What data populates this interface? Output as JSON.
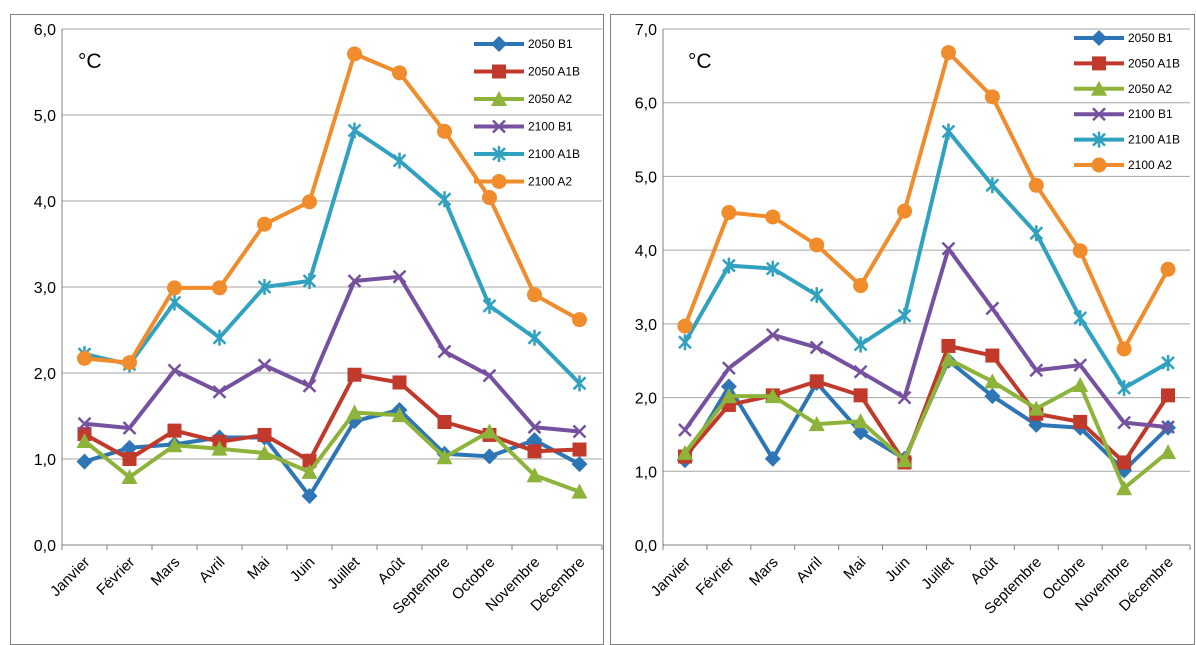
{
  "chart_data": [
    {
      "type": "line",
      "unit_label": "°C",
      "categories": [
        "Janvier",
        "Février",
        "Mars",
        "Avril",
        "Mai",
        "Juin",
        "Juillet",
        "Août",
        "Septembre",
        "Octobre",
        "Novembre",
        "Décembre"
      ],
      "ylim": [
        0,
        6
      ],
      "yticks": [
        "0,0",
        "1,0",
        "2,0",
        "3,0",
        "4,0",
        "5,0",
        "6,0"
      ],
      "legend_position": "top-right",
      "grid": true,
      "series": [
        {
          "name": "2050 B1",
          "color": "#2e75b6",
          "marker": "diamond",
          "values": [
            0.97,
            1.13,
            1.17,
            1.25,
            1.25,
            0.57,
            1.44,
            1.57,
            1.06,
            1.03,
            1.22,
            0.94
          ]
        },
        {
          "name": "2050 A1B",
          "color": "#c0392b",
          "marker": "square",
          "values": [
            1.29,
            1.0,
            1.33,
            1.2,
            1.28,
            0.98,
            1.98,
            1.89,
            1.43,
            1.28,
            1.09,
            1.11
          ]
        },
        {
          "name": "2050 A2",
          "color": "#8db33a",
          "marker": "triangle",
          "values": [
            1.21,
            0.79,
            1.16,
            1.12,
            1.07,
            0.85,
            1.54,
            1.51,
            1.02,
            1.32,
            0.81,
            0.62
          ]
        },
        {
          "name": "2100 B1",
          "color": "#7551a0",
          "marker": "x",
          "values": [
            1.41,
            1.36,
            2.03,
            1.78,
            2.09,
            1.85,
            3.07,
            3.12,
            2.25,
            1.97,
            1.37,
            1.32
          ]
        },
        {
          "name": "2100 A1B",
          "color": "#31a1c0",
          "marker": "star",
          "values": [
            2.22,
            2.1,
            2.82,
            2.41,
            3.0,
            3.07,
            4.82,
            4.47,
            4.02,
            2.78,
            2.41,
            1.88
          ]
        },
        {
          "name": "2100 A2",
          "color": "#f08c2c",
          "marker": "circle",
          "values": [
            2.17,
            2.12,
            2.99,
            2.99,
            3.73,
            3.99,
            5.71,
            5.49,
            4.81,
            4.04,
            2.91,
            2.62
          ]
        }
      ]
    },
    {
      "type": "line",
      "unit_label": "°C",
      "categories": [
        "Janvier",
        "Février",
        "Mars",
        "Avril",
        "Mai",
        "Juin",
        "Juillet",
        "Août",
        "Septembre",
        "Octobre",
        "Novembre",
        "Décembre"
      ],
      "ylim": [
        0,
        7
      ],
      "yticks": [
        "0,0",
        "1,0",
        "2,0",
        "3,0",
        "4,0",
        "5,0",
        "6,0",
        "7,0"
      ],
      "legend_position": "top-right",
      "grid": true,
      "series": [
        {
          "name": "2050 B1",
          "color": "#2e75b6",
          "marker": "diamond",
          "values": [
            1.15,
            2.15,
            1.17,
            2.2,
            1.53,
            1.17,
            2.5,
            2.02,
            1.63,
            1.59,
            1.01,
            1.59
          ]
        },
        {
          "name": "2050 A1B",
          "color": "#c0392b",
          "marker": "square",
          "values": [
            1.2,
            1.9,
            2.03,
            2.22,
            2.03,
            1.12,
            2.7,
            2.57,
            1.78,
            1.67,
            1.12,
            2.03
          ]
        },
        {
          "name": "2050 A2",
          "color": "#8db33a",
          "marker": "triangle",
          "values": [
            1.25,
            2.02,
            2.02,
            1.64,
            1.68,
            1.15,
            2.52,
            2.22,
            1.85,
            2.17,
            0.77,
            1.26
          ]
        },
        {
          "name": "2100 B1",
          "color": "#7551a0",
          "marker": "x",
          "values": [
            1.56,
            2.4,
            2.85,
            2.68,
            2.35,
            2.0,
            4.02,
            3.21,
            2.37,
            2.44,
            1.66,
            1.6
          ]
        },
        {
          "name": "2100 A1B",
          "color": "#31a1c0",
          "marker": "star",
          "values": [
            2.75,
            3.79,
            3.75,
            3.39,
            2.72,
            3.11,
            5.61,
            4.88,
            4.23,
            3.08,
            2.13,
            2.47
          ]
        },
        {
          "name": "2100 A2",
          "color": "#f08c2c",
          "marker": "circle",
          "values": [
            2.97,
            4.51,
            4.45,
            4.07,
            3.52,
            4.53,
            6.68,
            6.08,
            4.88,
            3.99,
            2.66,
            3.74
          ]
        }
      ]
    }
  ]
}
